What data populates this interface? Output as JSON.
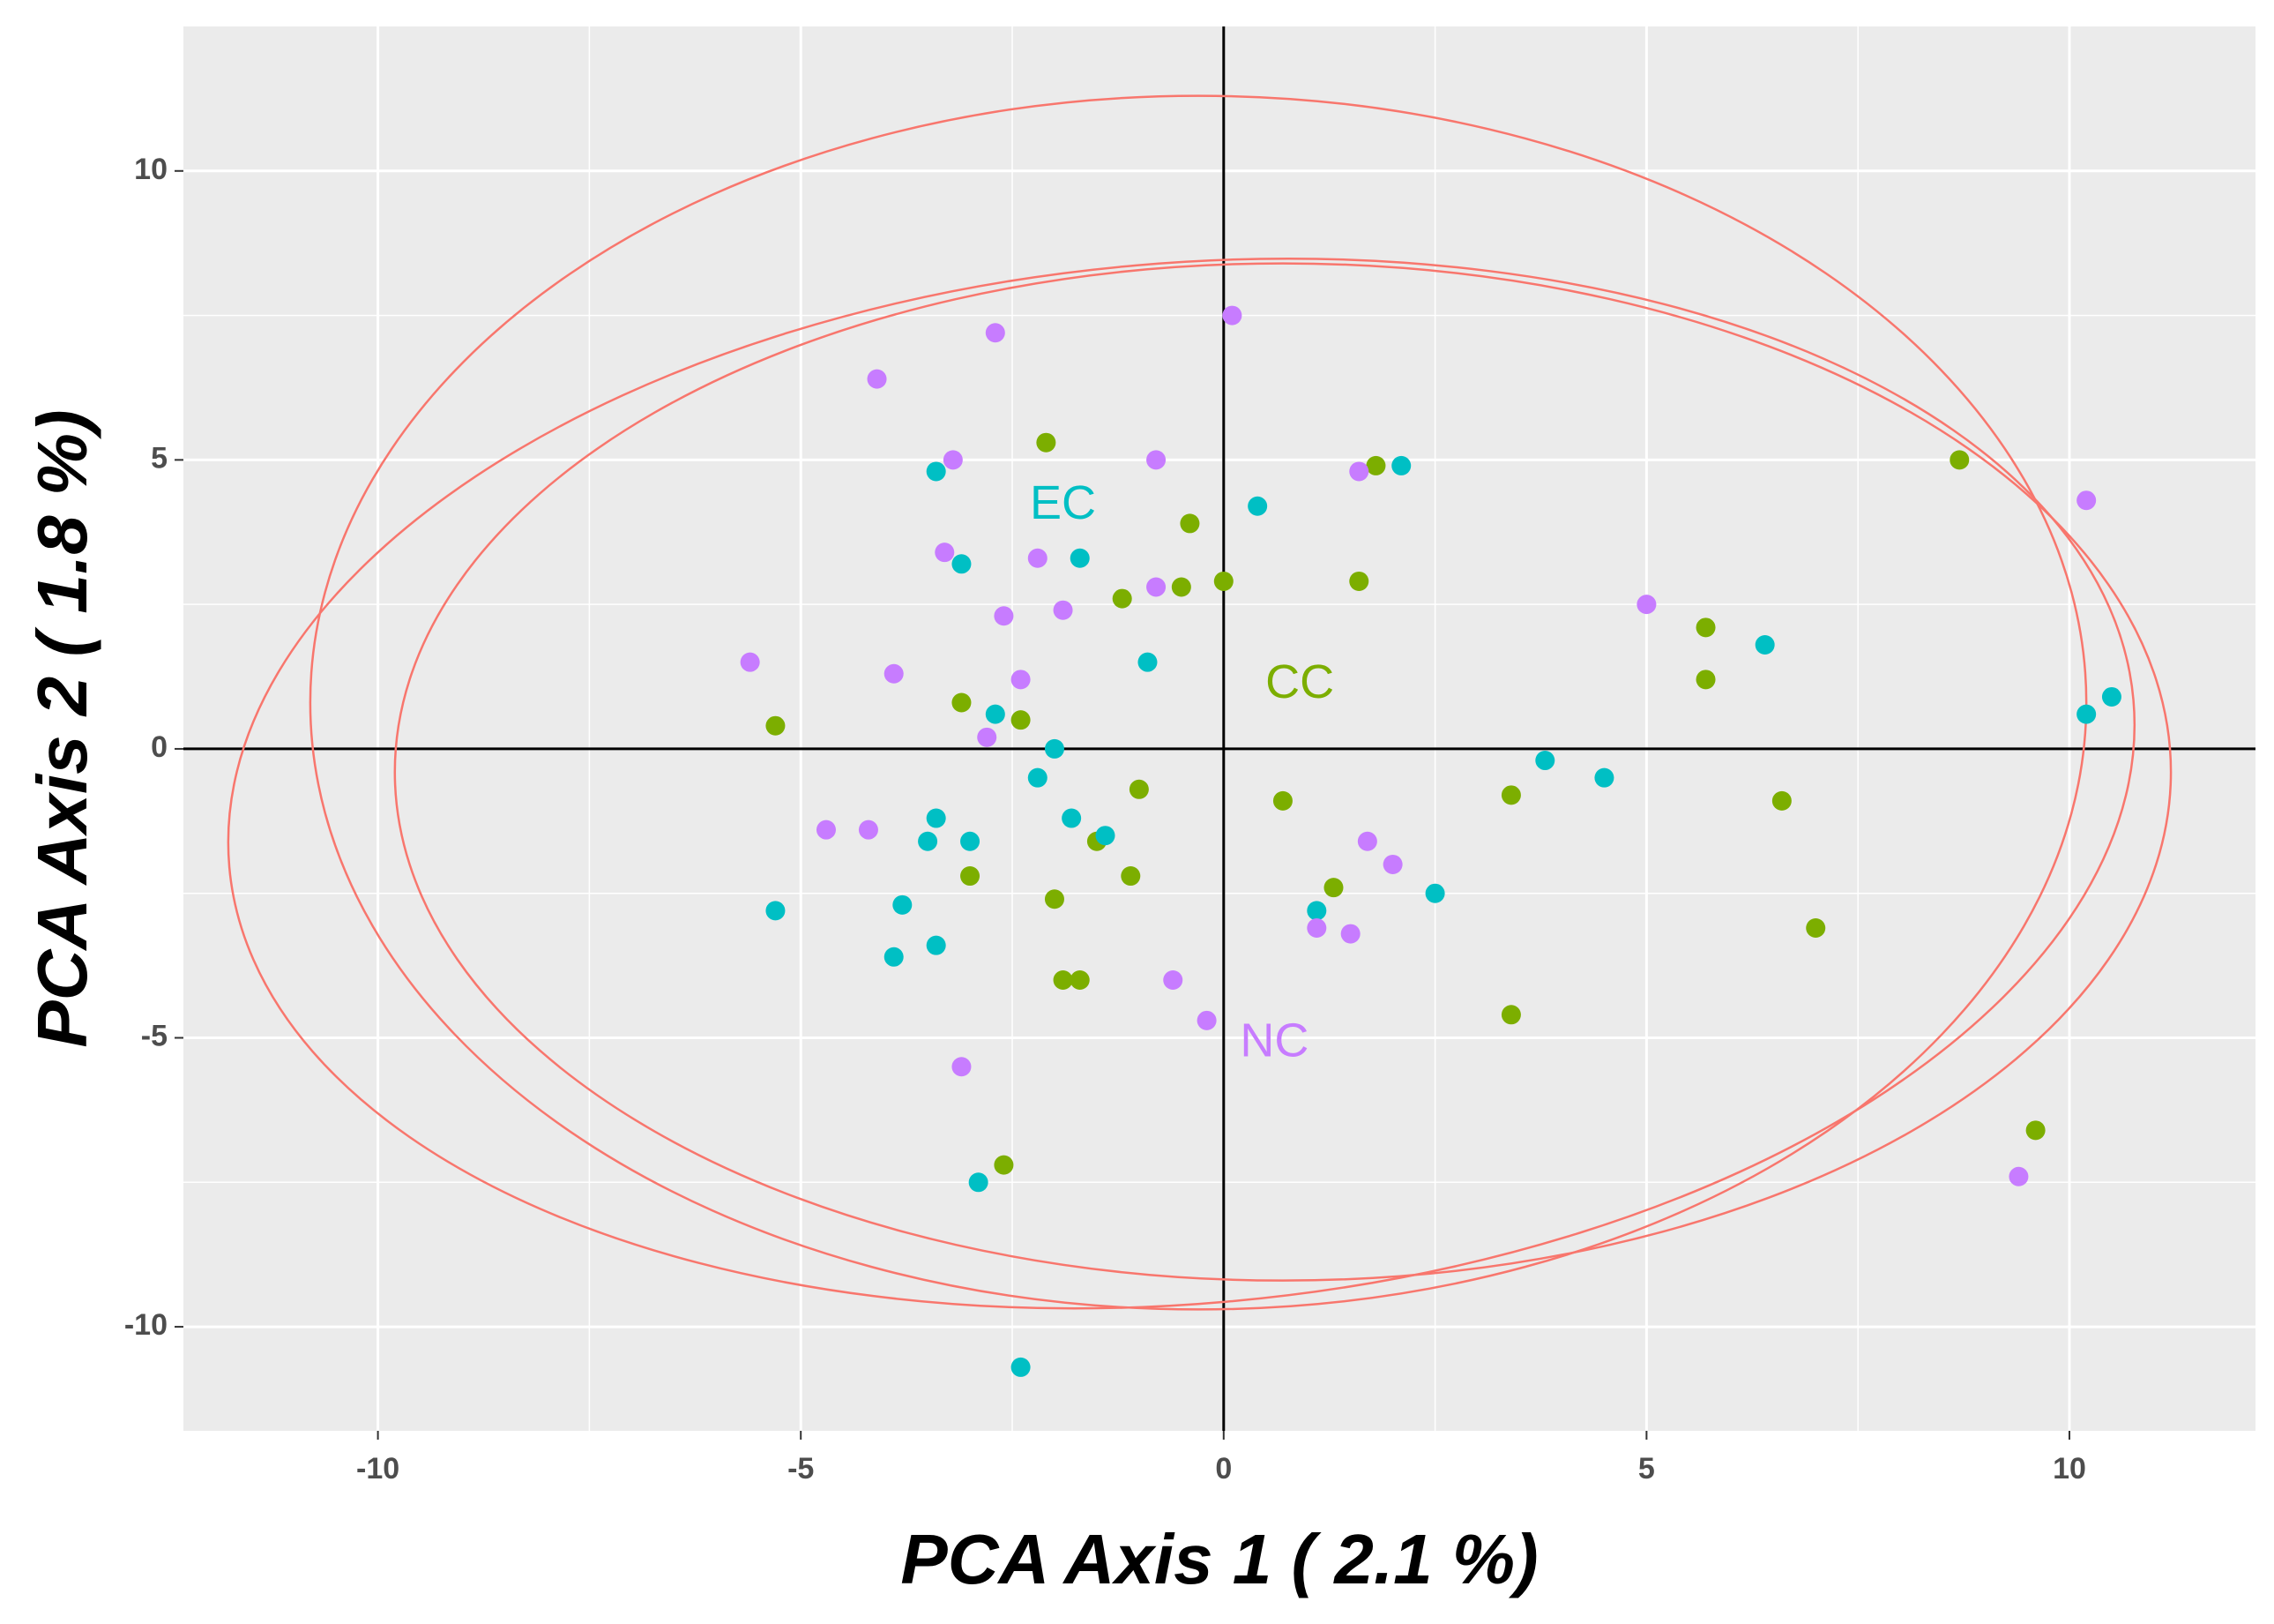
{
  "chart_data": {
    "type": "scatter",
    "title": "",
    "xlabel": "PCA Axis 1 ( 2.1 %)",
    "ylabel": "PCA Axis 2 ( 1.8 %)",
    "xlim": [
      -12.3,
      12.2
    ],
    "ylim": [
      -11.8,
      12.5
    ],
    "xticks": [
      -10,
      -5,
      0,
      5,
      10
    ],
    "yticks": [
      -10,
      -5,
      0,
      5,
      10
    ],
    "xtick_labels": [
      "-10",
      "-5",
      "0",
      "5",
      "10"
    ],
    "ytick_labels": [
      "-10",
      "-5",
      "0",
      "5",
      "10"
    ],
    "grid": true,
    "background": "#ebebeb",
    "gridline_color": "#ffffff",
    "reference_lines": {
      "x": 0,
      "y": 0,
      "color": "#000000"
    },
    "ellipse_color": "#f8766d",
    "ellipses": [
      {
        "cx": -0.3,
        "cy": 0.8,
        "rx": 10.5,
        "ry": 10.5,
        "angle": 0
      },
      {
        "cx": -0.5,
        "cy": -0.6,
        "rx": 11.3,
        "ry": 9.0,
        "angle": 5
      },
      {
        "cx": 0.7,
        "cy": -0.4,
        "rx": 10.5,
        "ry": 8.8,
        "angle": 0
      }
    ],
    "series": [
      {
        "name": "CC",
        "color": "#7cae00",
        "label": {
          "text": "CC",
          "x": 0.9,
          "y": 1.1
        },
        "points": [
          [
            -2.1,
            5.3
          ],
          [
            -0.4,
            3.9
          ],
          [
            1.8,
            4.9
          ],
          [
            -0.5,
            2.8
          ],
          [
            0.0,
            2.9
          ],
          [
            1.6,
            2.9
          ],
          [
            -1.2,
            2.6
          ],
          [
            -3.1,
            0.8
          ],
          [
            -2.4,
            0.5
          ],
          [
            -5.3,
            0.4
          ],
          [
            -1.0,
            -0.7
          ],
          [
            0.7,
            -0.9
          ],
          [
            -1.5,
            -1.6
          ],
          [
            -3.0,
            -2.2
          ],
          [
            -1.1,
            -2.2
          ],
          [
            -2.0,
            -2.6
          ],
          [
            1.3,
            -2.4
          ],
          [
            -1.9,
            -4.0
          ],
          [
            -1.7,
            -4.0
          ],
          [
            -2.6,
            -7.2
          ],
          [
            3.4,
            -4.6
          ],
          [
            3.4,
            -0.8
          ],
          [
            5.7,
            2.1
          ],
          [
            5.7,
            1.2
          ],
          [
            6.6,
            -0.9
          ],
          [
            7.0,
            -3.1
          ],
          [
            8.7,
            5.0
          ],
          [
            9.6,
            -6.6
          ]
        ]
      },
      {
        "name": "EC",
        "color": "#00bfc4",
        "label": {
          "text": "EC",
          "x": -1.9,
          "y": 4.2
        },
        "points": [
          [
            -3.4,
            4.8
          ],
          [
            -3.1,
            3.2
          ],
          [
            -1.7,
            3.3
          ],
          [
            0.4,
            4.2
          ],
          [
            2.1,
            4.9
          ],
          [
            -0.9,
            1.5
          ],
          [
            -2.7,
            0.6
          ],
          [
            -2.0,
            0.0
          ],
          [
            -2.2,
            -0.5
          ],
          [
            -3.4,
            -1.2
          ],
          [
            -3.5,
            -1.6
          ],
          [
            -3.0,
            -1.6
          ],
          [
            -1.8,
            -1.2
          ],
          [
            -1.4,
            -1.5
          ],
          [
            -3.8,
            -2.7
          ],
          [
            -3.4,
            -3.4
          ],
          [
            -3.9,
            -3.6
          ],
          [
            -5.3,
            -2.8
          ],
          [
            1.1,
            -2.8
          ],
          [
            2.5,
            -2.5
          ],
          [
            3.8,
            -0.2
          ],
          [
            4.5,
            -0.5
          ],
          [
            6.4,
            1.8
          ],
          [
            10.2,
            0.6
          ],
          [
            10.5,
            0.9
          ],
          [
            -2.9,
            -7.5
          ],
          [
            -2.4,
            -10.7
          ]
        ]
      },
      {
        "name": "NC",
        "color": "#c77cff",
        "label": {
          "text": "NC",
          "x": 0.6,
          "y": -5.1
        },
        "points": [
          [
            -4.1,
            6.4
          ],
          [
            -2.7,
            7.2
          ],
          [
            0.1,
            7.5
          ],
          [
            -3.2,
            5.0
          ],
          [
            -0.8,
            5.0
          ],
          [
            1.6,
            4.8
          ],
          [
            -3.3,
            3.4
          ],
          [
            -2.2,
            3.3
          ],
          [
            -0.8,
            2.8
          ],
          [
            -1.9,
            2.4
          ],
          [
            -2.6,
            2.3
          ],
          [
            -5.6,
            1.5
          ],
          [
            -3.9,
            1.3
          ],
          [
            -2.4,
            1.2
          ],
          [
            -2.8,
            0.2
          ],
          [
            -4.7,
            -1.4
          ],
          [
            -4.2,
            -1.4
          ],
          [
            1.7,
            -1.6
          ],
          [
            2.0,
            -2.0
          ],
          [
            1.1,
            -3.1
          ],
          [
            1.5,
            -3.2
          ],
          [
            -0.6,
            -4.0
          ],
          [
            -0.2,
            -4.7
          ],
          [
            -3.1,
            -5.5
          ],
          [
            5.0,
            2.5
          ],
          [
            10.2,
            4.3
          ],
          [
            9.4,
            -7.4
          ]
        ]
      }
    ]
  }
}
